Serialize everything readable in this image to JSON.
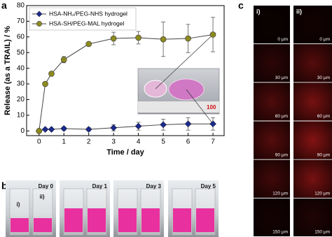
{
  "chart_data": {
    "type": "line",
    "x_label": "Time / day",
    "y_label": "Release (as a TRAIL) / %",
    "x": [
      0,
      0.25,
      0.5,
      1,
      2,
      3,
      4,
      5,
      6,
      7
    ],
    "series": [
      {
        "name": "HSA-NH₂/PEG-NHS hydrogel",
        "color": "#1c2a8c",
        "marker": "diamond",
        "values": [
          0,
          1,
          1,
          1.5,
          1,
          2,
          3,
          4,
          4.5,
          4.5
        ],
        "errors": [
          0,
          0.5,
          0.5,
          1,
          1,
          2,
          2.5,
          3.5,
          4,
          4
        ]
      },
      {
        "name": "HSA-SH/PEG-MAL hydrogel",
        "color": "#8d8a20",
        "marker": "circle",
        "values": [
          0,
          30,
          36.5,
          45.5,
          55.5,
          59,
          59.5,
          58.5,
          59,
          61.5
        ],
        "errors": [
          0,
          1,
          1,
          2,
          1,
          4,
          4,
          11,
          9,
          11
        ]
      }
    ],
    "xlim": [
      -0.5,
      7.45
    ],
    "ylim": [
      -3,
      80
    ],
    "xticks": [
      0,
      1,
      2,
      3,
      4,
      5,
      6,
      7
    ],
    "yticks": [
      0,
      10,
      20,
      30,
      40,
      50,
      60,
      70,
      80
    ],
    "legend": "upper left",
    "inset_label": "100"
  },
  "panel_labels": {
    "a": "a",
    "b": "b",
    "c": "c"
  },
  "panel_b": {
    "days": [
      "Day 0",
      "Day 1",
      "Day 3",
      "Day 5"
    ],
    "vials": [
      "i)",
      "ii)"
    ]
  },
  "panel_c": {
    "columns": [
      "i)",
      "ii)"
    ],
    "depths": [
      "0 μm",
      "30 μm",
      "60 μm",
      "90 μm",
      "120 μm",
      "150 μm"
    ]
  }
}
